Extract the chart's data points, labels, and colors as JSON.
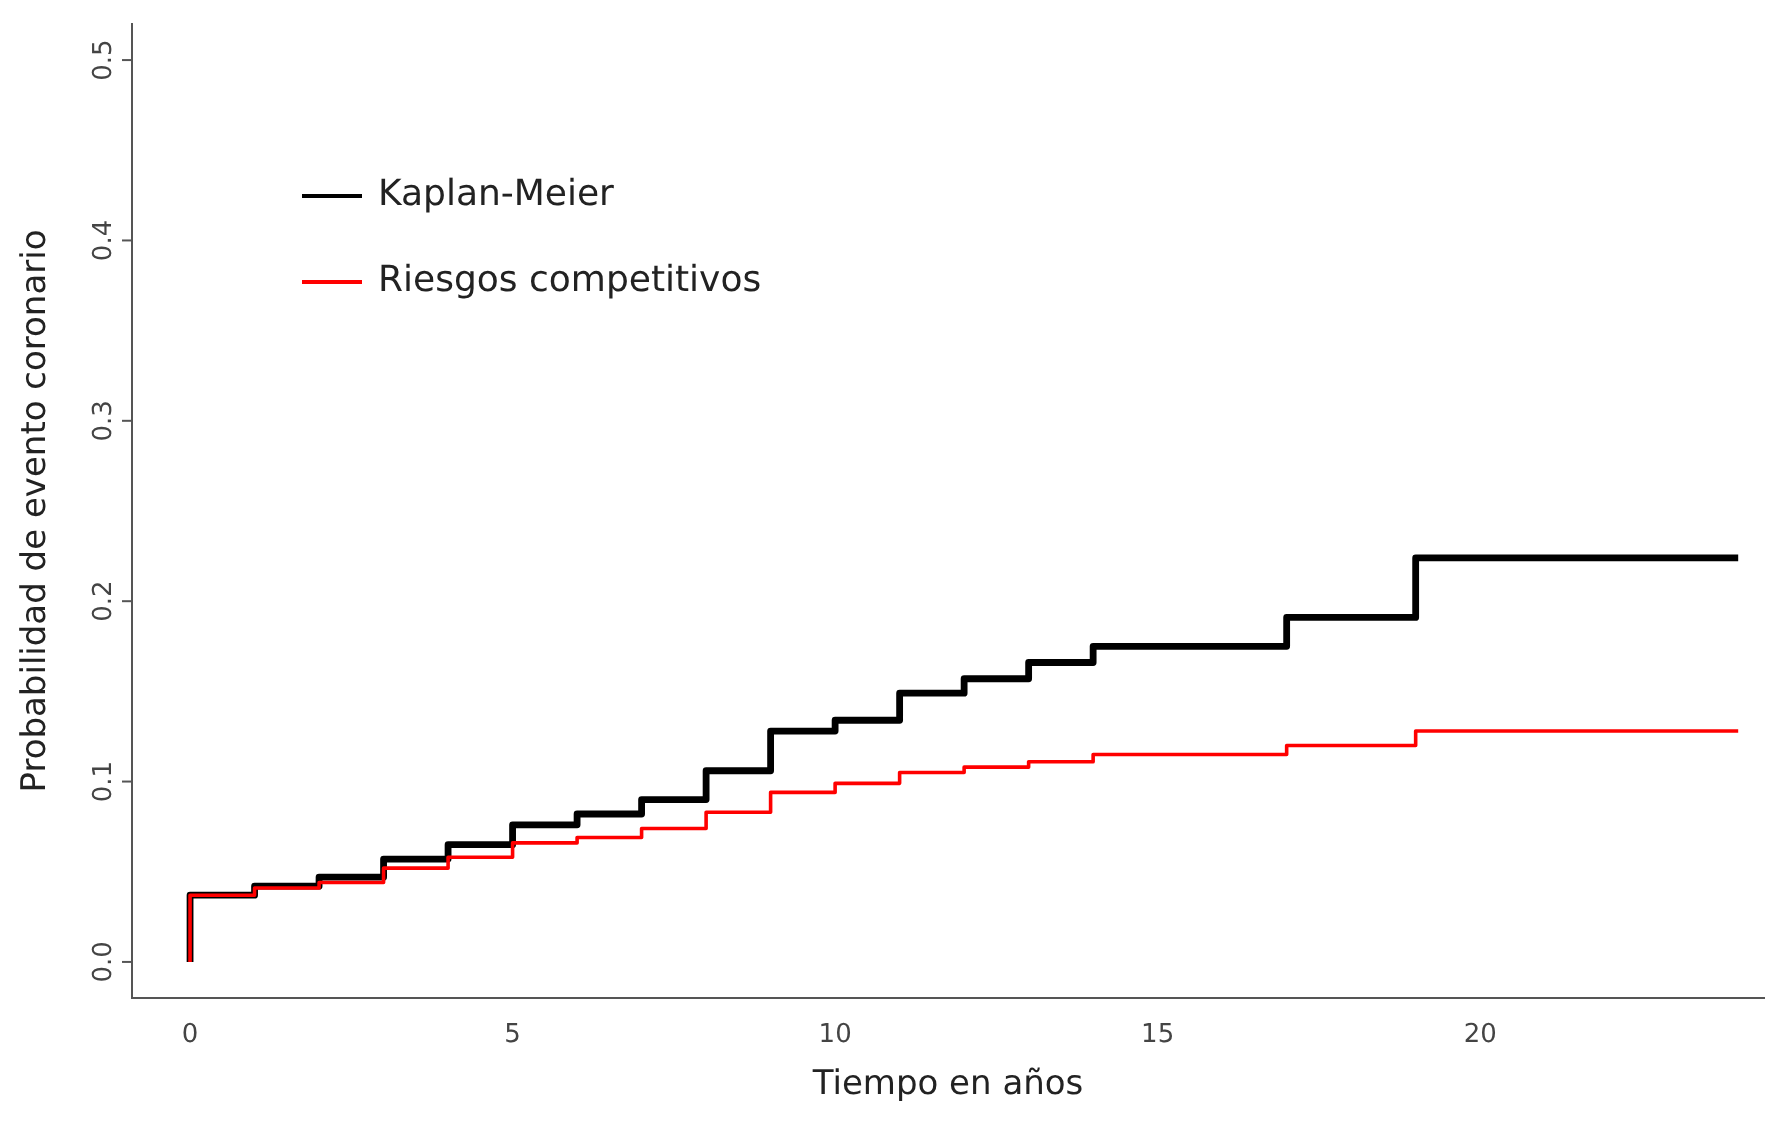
{
  "chart_data": {
    "type": "step",
    "xlabel": "Tiempo en años",
    "ylabel": "Probabilidad de evento coronario",
    "xlim": [
      -0.9,
      24.4
    ],
    "ylim": [
      -0.02,
      0.52
    ],
    "xticks": [
      0,
      5,
      10,
      15,
      20
    ],
    "yticks": [
      {
        "value": 0,
        "label": "0.0"
      },
      0.1,
      0.2,
      0.3,
      0.4,
      0.5
    ],
    "grid": false,
    "legend": "top left",
    "marker": "none",
    "line_style": "solid",
    "series": [
      {
        "name": "Kaplan-Meier",
        "color": "#000000",
        "x": [
          0,
          0,
          1,
          2,
          3,
          4,
          5,
          6,
          7,
          8,
          9,
          10,
          11,
          12,
          13,
          14,
          17,
          19,
          24
        ],
        "values": [
          0,
          0.037,
          0.042,
          0.047,
          0.057,
          0.065,
          0.076,
          0.082,
          0.09,
          0.106,
          0.128,
          0.134,
          0.149,
          0.157,
          0.166,
          0.175,
          0.191,
          0.224,
          0.224
        ]
      },
      {
        "name": "Riesgos competitivos",
        "color": "#ff0000",
        "x": [
          0,
          0,
          1,
          2,
          3,
          4,
          5,
          6,
          7,
          8,
          9,
          10,
          11,
          12,
          13,
          14,
          17,
          19,
          24
        ],
        "values": [
          0,
          0.037,
          0.041,
          0.044,
          0.052,
          0.058,
          0.066,
          0.069,
          0.074,
          0.083,
          0.094,
          0.099,
          0.105,
          0.108,
          0.111,
          0.115,
          0.12,
          0.128,
          0.128
        ]
      }
    ]
  }
}
